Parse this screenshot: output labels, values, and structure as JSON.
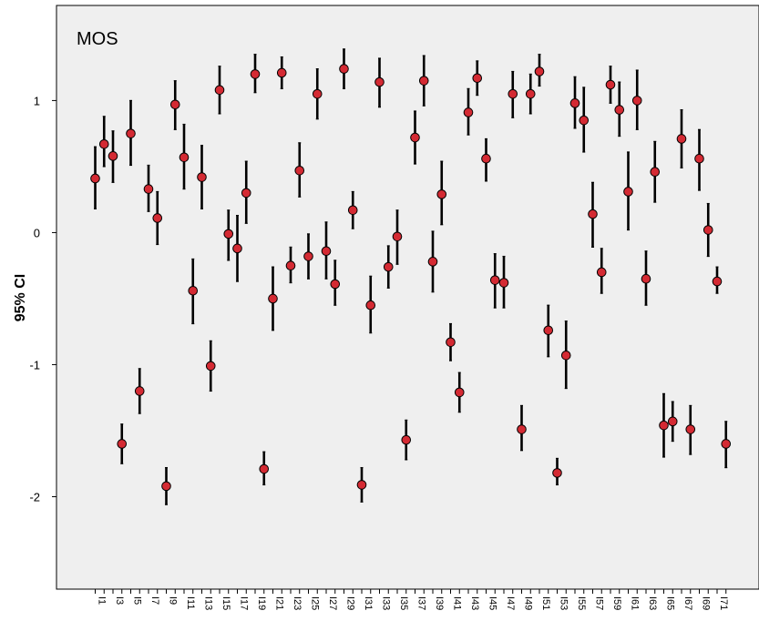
{
  "chart_data": {
    "type": "scatter",
    "subtype": "error-bar (mean with 95% CI)",
    "annotation": "MOS",
    "title": "",
    "xlabel": "",
    "ylabel": "95% CI",
    "ylim": [
      -2.7,
      1.72
    ],
    "yticks": [
      1,
      0,
      -1,
      -2
    ],
    "ytick_labels": [
      "1",
      "0",
      "-1",
      "-2"
    ],
    "grid": false,
    "legend": "none",
    "x_tick_labels": [
      "I1",
      "I3",
      "I5",
      "I7",
      "I9",
      "I11",
      "I13",
      "I15",
      "I17",
      "I19",
      "I21",
      "I23",
      "I25",
      "I27",
      "I29",
      "I31",
      "I33",
      "I35",
      "I37",
      "I39",
      "I41",
      "I43",
      "I45",
      "I47",
      "I49",
      "I51",
      "I53",
      "I55",
      "I57",
      "I59",
      "I61",
      "I63",
      "I65",
      "I67",
      "I69",
      "I71"
    ],
    "colors": {
      "plot_background": "#efefef",
      "marker_fill": "#d42a33",
      "marker_edge": "#000000",
      "error_bar": "#000000"
    },
    "x": [
      "I1",
      "I2",
      "I3",
      "I4",
      "I5",
      "I6",
      "I7",
      "I8",
      "I9",
      "I10",
      "I11",
      "I12",
      "I13",
      "I14",
      "I15",
      "I16",
      "I17",
      "I18",
      "I19",
      "I20",
      "I21",
      "I22",
      "I23",
      "I24",
      "I25",
      "I26",
      "I27",
      "I28",
      "I29",
      "I30",
      "I31",
      "I32",
      "I33",
      "I34",
      "I35",
      "I36",
      "I37",
      "I38",
      "I39",
      "I40",
      "I41",
      "I42",
      "I43",
      "I44",
      "I45",
      "I46",
      "I47",
      "I48",
      "I49",
      "I50",
      "I51",
      "I52",
      "I53",
      "I54",
      "I55",
      "I56",
      "I57",
      "I58",
      "I59",
      "I60",
      "I61",
      "I62",
      "I63",
      "I64",
      "I65",
      "I66",
      "I67",
      "I68",
      "I69",
      "I70",
      "I71",
      "I72"
    ],
    "mean": [
      0.41,
      0.67,
      0.58,
      -1.6,
      0.75,
      -1.2,
      0.33,
      0.11,
      -1.92,
      0.97,
      0.57,
      -0.44,
      0.42,
      -1.01,
      1.08,
      -0.01,
      -0.12,
      0.3,
      1.2,
      -1.79,
      -0.5,
      1.21,
      -0.25,
      0.47,
      -0.18,
      1.05,
      -0.14,
      -0.39,
      1.24,
      0.17,
      -1.91,
      -0.55,
      1.14,
      -0.26,
      -0.03,
      -1.57,
      0.72,
      1.15,
      -0.22,
      0.29,
      -0.83,
      -1.21,
      0.91,
      1.17,
      0.56,
      -0.36,
      -0.38,
      1.05,
      -1.49,
      1.05,
      1.22,
      -0.74,
      -1.82,
      -0.93,
      0.98,
      0.85,
      0.14,
      -0.3,
      1.12,
      0.93,
      0.31,
      1.0,
      -0.35,
      0.46,
      -1.46,
      -1.43,
      0.71,
      -1.49,
      0.56,
      0.02,
      -0.37,
      -1.6
    ],
    "ci_low": [
      0.18,
      0.5,
      0.38,
      -1.75,
      0.51,
      -1.37,
      0.16,
      -0.09,
      -2.06,
      0.78,
      0.33,
      -0.69,
      0.18,
      -1.2,
      0.9,
      -0.21,
      -0.37,
      0.07,
      1.06,
      -1.91,
      -0.74,
      1.09,
      -0.38,
      0.27,
      -0.35,
      0.86,
      -0.35,
      -0.55,
      1.09,
      0.03,
      -2.04,
      -0.76,
      0.95,
      -0.42,
      -0.24,
      -1.72,
      0.52,
      0.96,
      -0.45,
      0.06,
      -0.97,
      -1.36,
      0.74,
      1.04,
      0.39,
      -0.57,
      -0.57,
      0.87,
      -1.65,
      0.9,
      1.11,
      -0.94,
      -1.91,
      -1.18,
      0.79,
      0.61,
      -0.11,
      -0.46,
      0.98,
      0.73,
      0.02,
      0.78,
      -0.55,
      0.23,
      -1.7,
      -1.58,
      0.49,
      -1.68,
      0.32,
      -0.18,
      -0.46,
      -1.78
    ],
    "ci_high": [
      0.65,
      0.88,
      0.77,
      -1.45,
      1.0,
      -1.03,
      0.51,
      0.31,
      -1.78,
      1.15,
      0.82,
      -0.2,
      0.66,
      -0.82,
      1.26,
      0.17,
      0.13,
      0.54,
      1.35,
      -1.66,
      -0.26,
      1.33,
      -0.11,
      0.68,
      -0.01,
      1.24,
      0.08,
      -0.21,
      1.39,
      0.31,
      -1.78,
      -0.33,
      1.32,
      -0.1,
      0.17,
      -1.42,
      0.92,
      1.34,
      0.01,
      0.54,
      -0.69,
      -1.06,
      1.09,
      1.3,
      0.71,
      -0.16,
      -0.18,
      1.22,
      -1.31,
      1.2,
      1.35,
      -0.55,
      -1.71,
      -0.67,
      1.18,
      1.1,
      0.38,
      -0.12,
      1.26,
      1.14,
      0.61,
      1.23,
      -0.14,
      0.69,
      -1.22,
      -1.28,
      0.93,
      -1.31,
      0.78,
      0.22,
      -0.26,
      -1.43
    ]
  }
}
